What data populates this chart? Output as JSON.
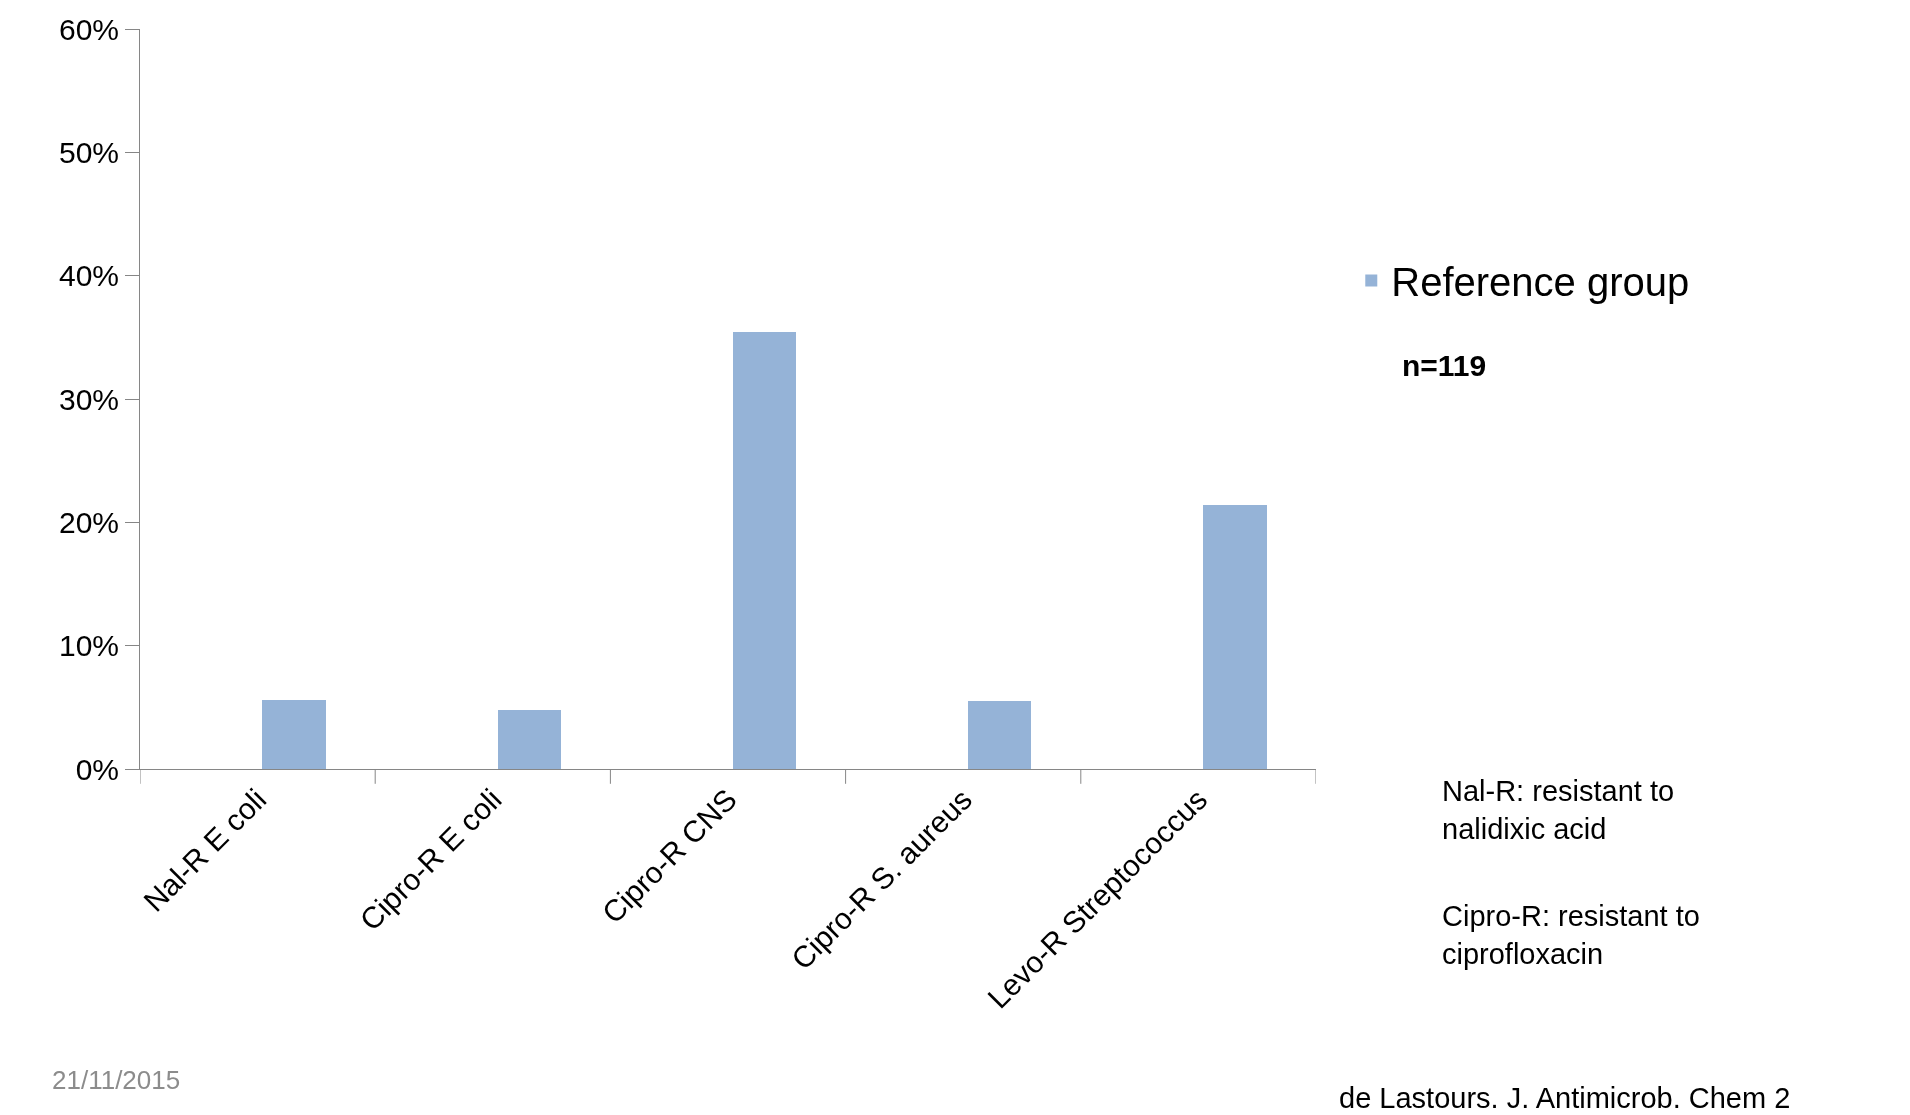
{
  "chart_data": {
    "type": "bar",
    "categories": [
      "Nal-R E coli",
      "Cipro-R E coli",
      "Cipro-R CNS",
      "Cipro-R S. aureus",
      "Levo-R Streptococcus"
    ],
    "series": [
      {
        "name": "Reference group",
        "color": "#95b3d7",
        "values": [
          5.6,
          4.8,
          35.4,
          5.5,
          21.4
        ]
      }
    ],
    "ylim": [
      0,
      60
    ],
    "yticks": [
      {
        "value": 0,
        "label": "0%"
      },
      {
        "value": 10,
        "label": "10%"
      },
      {
        "value": 20,
        "label": "20%"
      },
      {
        "value": 30,
        "label": "30%"
      },
      {
        "value": 40,
        "label": "40%"
      },
      {
        "value": 50,
        "label": "50%"
      },
      {
        "value": 60,
        "label": "60%"
      }
    ],
    "legend": "right",
    "annotations": [
      "n=119",
      "Nal-R: resistant to nalidixic acid",
      "Cipro-R: resistant to ciprofloxacin",
      "21/11/2015",
      "de Lastours. J. Antimicrob. Chem 2"
    ]
  }
}
